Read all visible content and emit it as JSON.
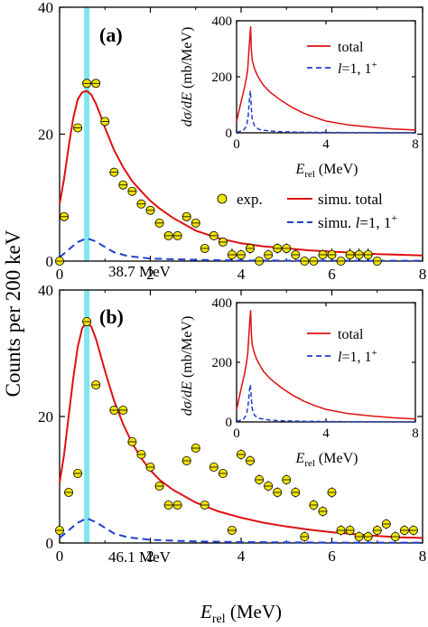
{
  "figure": {
    "ylabel": "Counts per 200 keV",
    "xlabel_main": "E",
    "xlabel_sub": "rel",
    "xlabel_unit": " (MeV)",
    "highlight_band_x": 0.6,
    "colors": {
      "total": "#dd1111",
      "l1": "#1f3fcc",
      "band": "#7fe6ee",
      "marker": "#f2e500"
    }
  },
  "chart_data": [
    {
      "type": "scatter",
      "panel": "(a)",
      "energy_label": "38.7 MeV",
      "xlim": [
        0,
        8
      ],
      "ylim": [
        0,
        40
      ],
      "xticks": [
        0,
        2,
        4,
        6,
        8
      ],
      "yticks": [
        0,
        20,
        40
      ],
      "legend": {
        "placement": "center-right",
        "exp": "exp.",
        "total": "simu. total",
        "l1_prefix": "simu. ",
        "l1_italic": "l",
        "l1_suffix": "=1, 1",
        "l1_sup": "+"
      },
      "series": [
        {
          "name": "exp.",
          "kind": "points",
          "x": [
            0.0,
            0.1,
            0.4,
            0.6,
            0.8,
            1.0,
            1.2,
            1.4,
            1.6,
            1.8,
            2.0,
            2.2,
            2.4,
            2.6,
            2.8,
            3.0,
            3.2,
            3.4,
            3.6,
            3.8,
            4.0,
            4.2,
            4.4,
            4.6,
            4.8,
            5.0,
            5.2,
            5.4,
            5.6,
            5.8,
            6.0,
            6.2,
            6.4,
            6.6,
            6.8,
            7.0
          ],
          "y": [
            0,
            7,
            21,
            28,
            28,
            22,
            14,
            12,
            11,
            9,
            8,
            6,
            4,
            4,
            7,
            6,
            2,
            4,
            3,
            1,
            1,
            2,
            0,
            1,
            2,
            2,
            1,
            0,
            0,
            1,
            1,
            0,
            1,
            1,
            1,
            0
          ],
          "err": [
            0.3,
            0.4,
            0.4,
            0.4,
            0.4,
            0.4,
            0.4,
            0.4,
            0.4,
            0.4,
            0.4,
            0.4,
            0.4,
            0.4,
            0.4,
            0.4,
            0.4,
            0.4,
            0.4,
            1.0,
            0.8,
            0.8,
            0.4,
            0.8,
            0.8,
            0.8,
            0.8,
            0.4,
            0.4,
            0.8,
            1.0,
            0.4,
            1.0,
            1.0,
            1.0,
            0.4
          ]
        },
        {
          "name": "simu. total",
          "kind": "line",
          "x": [
            0.0,
            0.1,
            0.2,
            0.3,
            0.4,
            0.5,
            0.6,
            0.7,
            0.8,
            0.9,
            1.0,
            1.2,
            1.4,
            1.6,
            1.8,
            2.0,
            2.2,
            2.5,
            3.0,
            3.5,
            4.0,
            4.5,
            5.0,
            5.5,
            6.0,
            6.5,
            7.0,
            7.5,
            8.0
          ],
          "y": [
            9,
            13,
            18,
            22.5,
            25.5,
            26.6,
            26.8,
            26.2,
            24.8,
            23.0,
            21.0,
            17.5,
            14.8,
            12.6,
            11.0,
            9.5,
            8.3,
            6.8,
            4.8,
            3.6,
            2.8,
            2.3,
            2.0,
            1.7,
            1.5,
            1.3,
            1.1,
            1.0,
            0.9
          ]
        },
        {
          "name": "simu. l=1, 1+",
          "kind": "dashed",
          "x": [
            0.0,
            0.2,
            0.4,
            0.6,
            0.8,
            1.0,
            1.2,
            1.5,
            2.0,
            3.0,
            4.0,
            6.0,
            8.0
          ],
          "y": [
            0.6,
            1.8,
            3.0,
            3.6,
            3.1,
            2.2,
            1.4,
            0.8,
            0.4,
            0.2,
            0.1,
            0.05,
            0.05
          ]
        }
      ],
      "inset": {
        "ylabel_main": "dσ/dE",
        "ylabel_unit": " (mb/MeV)",
        "xlabel_main": "E",
        "xlabel_sub": "rel",
        "xlabel_unit": " (MeV)",
        "xlim": [
          0,
          8
        ],
        "ylim": [
          0,
          400
        ],
        "xticks": [
          0,
          4,
          8
        ],
        "yticks": [
          0,
          200,
          400
        ],
        "legend": {
          "total": "total",
          "l1_italic": "l",
          "l1_suffix": "=1, 1",
          "l1_sup": "+"
        },
        "series": [
          {
            "name": "total",
            "x": [
              0.0,
              0.2,
              0.35,
              0.45,
              0.5,
              0.55,
              0.6,
              0.63,
              0.66,
              0.7,
              0.8,
              0.9,
              1.0,
              1.2,
              1.5,
              2.0,
              2.5,
              3.0,
              3.5,
              4.0,
              5.0,
              6.0,
              7.0,
              8.0
            ],
            "y": [
              40,
              110,
              160,
              200,
              230,
              290,
              350,
              380,
              300,
              260,
              230,
              210,
              195,
              170,
              145,
              115,
              90,
              70,
              55,
              42,
              28,
              20,
              14,
              10
            ]
          },
          {
            "name": "l=1, 1+",
            "x": [
              0.0,
              0.3,
              0.45,
              0.52,
              0.58,
              0.62,
              0.66,
              0.7,
              0.8,
              1.0,
              1.5,
              2.0,
              3.0,
              5.0,
              8.0
            ],
            "y": [
              2,
              8,
              25,
              60,
              130,
              150,
              90,
              50,
              25,
              12,
              6,
              4,
              2,
              1,
              0
            ]
          }
        ]
      }
    },
    {
      "type": "scatter",
      "panel": "(b)",
      "energy_label": "46.1 MeV",
      "xlim": [
        0,
        8
      ],
      "ylim": [
        0,
        40
      ],
      "xticks": [
        0,
        2,
        4,
        6,
        8
      ],
      "yticks": [
        0,
        20,
        40
      ],
      "series": [
        {
          "name": "exp.",
          "kind": "points",
          "x": [
            0.0,
            0.2,
            0.4,
            0.6,
            0.8,
            1.2,
            1.4,
            1.6,
            1.8,
            2.0,
            2.2,
            2.4,
            2.6,
            2.8,
            3.0,
            3.2,
            3.4,
            3.6,
            3.8,
            4.0,
            4.2,
            4.4,
            4.6,
            4.8,
            5.0,
            5.2,
            5.4,
            5.6,
            5.8,
            6.0,
            6.2,
            6.4,
            6.6,
            6.8,
            7.0,
            7.2,
            7.4,
            7.6,
            7.8
          ],
          "y": [
            2,
            8,
            11,
            35,
            25,
            21,
            21,
            16,
            14,
            12,
            9,
            6,
            6,
            13,
            15,
            6,
            12,
            11,
            2,
            14,
            13,
            10,
            9,
            8,
            10,
            8,
            1,
            6,
            5,
            8,
            2,
            2,
            1,
            1,
            2,
            3,
            1,
            2,
            2
          ],
          "err": [
            0.4,
            0.4,
            0.4,
            0.4,
            0.4,
            0.4,
            0.4,
            0.4,
            0.4,
            0.4,
            0.4,
            0.4,
            0.4,
            0.4,
            0.4,
            0.4,
            0.4,
            0.5,
            0.5,
            0.8,
            0.8,
            0.8,
            0.8,
            0.8,
            0.8,
            0.8,
            0.8,
            0.8,
            0.8,
            0.8,
            0.8,
            0.8,
            0.8,
            0.8,
            0.8,
            0.8,
            0.8,
            0.8,
            0.8
          ]
        },
        {
          "name": "simu. total",
          "kind": "line",
          "x": [
            0.0,
            0.1,
            0.2,
            0.3,
            0.4,
            0.5,
            0.6,
            0.7,
            0.8,
            0.9,
            1.0,
            1.2,
            1.4,
            1.6,
            1.8,
            2.0,
            2.2,
            2.5,
            3.0,
            3.5,
            4.0,
            4.5,
            5.0,
            5.5,
            6.0,
            6.5,
            7.0,
            7.5,
            8.0
          ],
          "y": [
            9.5,
            14,
            20,
            26,
            31,
            34,
            34.8,
            34.2,
            32.3,
            29.8,
            27.2,
            22.5,
            18.8,
            15.8,
            13.4,
            11.5,
            10.0,
            8.4,
            6.4,
            5.0,
            4.0,
            3.2,
            2.6,
            2.1,
            1.7,
            1.4,
            1.1,
            0.9,
            0.8
          ]
        },
        {
          "name": "simu. l=1, 1+",
          "kind": "dashed",
          "x": [
            0.0,
            0.2,
            0.4,
            0.6,
            0.8,
            1.0,
            1.2,
            1.5,
            2.0,
            3.0,
            4.0,
            6.0,
            8.0
          ],
          "y": [
            0.8,
            2.0,
            3.2,
            3.9,
            3.3,
            2.4,
            1.5,
            0.9,
            0.5,
            0.25,
            0.15,
            0.05,
            0.05
          ]
        }
      ],
      "inset": {
        "ylabel_main": "dσ/dE",
        "ylabel_unit": " (mb/MeV)",
        "xlabel_main": "E",
        "xlabel_sub": "rel",
        "xlabel_unit": " (MeV)",
        "xlim": [
          0,
          8
        ],
        "ylim": [
          0,
          400
        ],
        "xticks": [
          0,
          4,
          8
        ],
        "yticks": [
          0,
          200,
          400
        ],
        "legend": {
          "total": "total",
          "l1_italic": "l",
          "l1_suffix": "=1, 1",
          "l1_sup": "+"
        },
        "series": [
          {
            "name": "total",
            "x": [
              0.0,
              0.2,
              0.35,
              0.45,
              0.5,
              0.55,
              0.6,
              0.63,
              0.66,
              0.7,
              0.8,
              0.9,
              1.0,
              1.2,
              1.5,
              2.0,
              2.5,
              3.0,
              3.5,
              4.0,
              5.0,
              6.0,
              7.0,
              8.0
            ],
            "y": [
              40,
              110,
              160,
              200,
              230,
              290,
              350,
              375,
              300,
              260,
              230,
              210,
              195,
              170,
              145,
              115,
              90,
              70,
              55,
              42,
              28,
              20,
              14,
              10
            ]
          },
          {
            "name": "l=1, 1+",
            "x": [
              0.0,
              0.3,
              0.45,
              0.52,
              0.58,
              0.62,
              0.66,
              0.7,
              0.8,
              1.0,
              1.5,
              2.0,
              3.0,
              5.0,
              8.0
            ],
            "y": [
              2,
              8,
              25,
              60,
              110,
              125,
              80,
              45,
              22,
              12,
              6,
              4,
              2,
              1,
              0
            ]
          }
        ]
      }
    }
  ]
}
